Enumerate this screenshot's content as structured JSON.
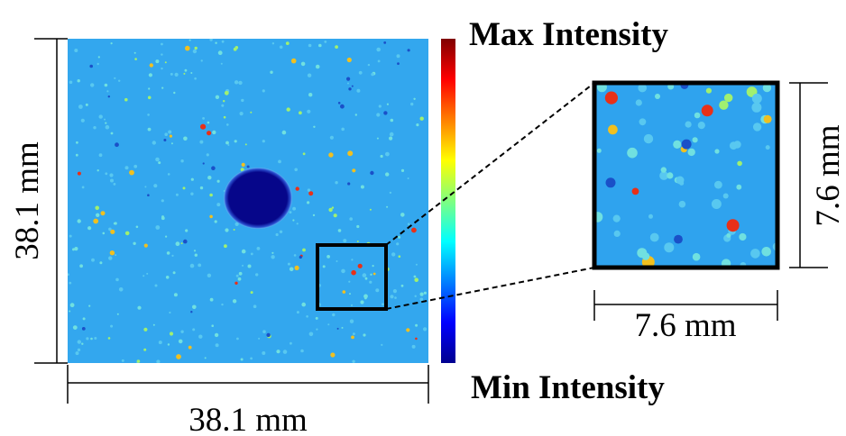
{
  "main_image": {
    "height_label": "38.1 mm",
    "width_label": "38.1 mm"
  },
  "colorbar": {
    "max_label": "Max Intensity",
    "min_label": "Min Intensity"
  },
  "inset": {
    "height_label": "7.6 mm",
    "width_label": "7.6 mm"
  }
}
